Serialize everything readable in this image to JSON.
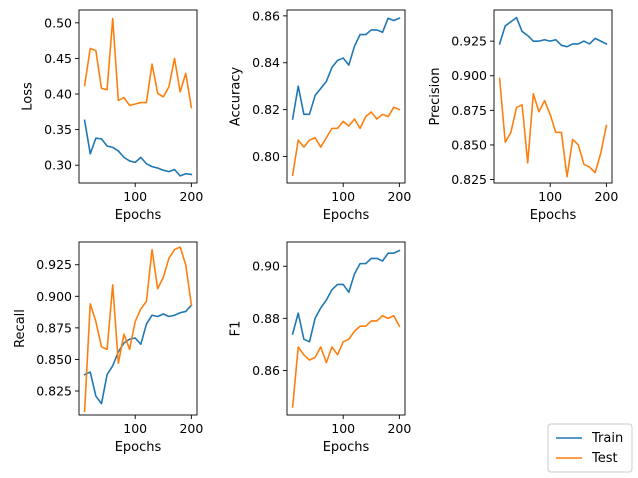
{
  "colors": {
    "train": "#1f77b4",
    "test": "#ff7f0e"
  },
  "legend": {
    "placement": "bottom-right",
    "items": [
      {
        "label": "Train",
        "color": "#1f77b4"
      },
      {
        "label": "Test",
        "color": "#ff7f0e"
      }
    ]
  },
  "chart_data": [
    {
      "type": "line",
      "ylabel": "Loss",
      "xlabel": "Epochs",
      "xlim": [
        0,
        210
      ],
      "ylim": [
        0.275,
        0.518
      ],
      "xticks": [
        100,
        200
      ],
      "yticks": [
        0.3,
        0.35,
        0.4,
        0.45,
        0.5
      ],
      "x": [
        10,
        20,
        30,
        40,
        50,
        60,
        70,
        80,
        90,
        100,
        110,
        120,
        130,
        140,
        150,
        160,
        170,
        180,
        190,
        200
      ],
      "series": [
        {
          "name": "Train",
          "values": [
            0.363,
            0.316,
            0.338,
            0.337,
            0.327,
            0.325,
            0.32,
            0.311,
            0.306,
            0.304,
            0.311,
            0.302,
            0.298,
            0.296,
            0.293,
            0.291,
            0.294,
            0.285,
            0.288,
            0.287
          ]
        },
        {
          "name": "Test",
          "values": [
            0.412,
            0.464,
            0.461,
            0.408,
            0.406,
            0.506,
            0.391,
            0.395,
            0.384,
            0.386,
            0.388,
            0.388,
            0.442,
            0.401,
            0.396,
            0.41,
            0.45,
            0.403,
            0.429,
            0.381
          ]
        }
      ]
    },
    {
      "type": "line",
      "ylabel": "Accuracy",
      "xlabel": "Epochs",
      "xlim": [
        0,
        210
      ],
      "ylim": [
        0.7887,
        0.8625
      ],
      "xticks": [
        100,
        200
      ],
      "yticks": [
        0.8,
        0.82,
        0.84,
        0.86
      ],
      "x": [
        10,
        20,
        30,
        40,
        50,
        60,
        70,
        80,
        90,
        100,
        110,
        120,
        130,
        140,
        150,
        160,
        170,
        180,
        190,
        200
      ],
      "series": [
        {
          "name": "Train",
          "values": [
            0.816,
            0.83,
            0.818,
            0.818,
            0.826,
            0.829,
            0.832,
            0.838,
            0.841,
            0.842,
            0.839,
            0.847,
            0.852,
            0.852,
            0.854,
            0.854,
            0.853,
            0.859,
            0.858,
            0.859
          ]
        },
        {
          "name": "Test",
          "values": [
            0.792,
            0.807,
            0.804,
            0.807,
            0.808,
            0.804,
            0.808,
            0.812,
            0.812,
            0.815,
            0.813,
            0.816,
            0.812,
            0.817,
            0.819,
            0.816,
            0.818,
            0.817,
            0.821,
            0.82
          ]
        }
      ]
    },
    {
      "type": "line",
      "ylabel": "Precision",
      "xlabel": "Epochs",
      "xlim": [
        0,
        210
      ],
      "ylim": [
        0.8225,
        0.9475
      ],
      "xticks": [
        100,
        200
      ],
      "yticks": [
        0.825,
        0.85,
        0.875,
        0.9,
        0.925
      ],
      "x": [
        10,
        20,
        30,
        40,
        50,
        60,
        70,
        80,
        90,
        100,
        110,
        120,
        130,
        140,
        150,
        160,
        170,
        180,
        190,
        200
      ],
      "series": [
        {
          "name": "Train",
          "values": [
            0.923,
            0.936,
            0.939,
            0.942,
            0.932,
            0.929,
            0.925,
            0.925,
            0.926,
            0.925,
            0.926,
            0.922,
            0.921,
            0.923,
            0.923,
            0.925,
            0.923,
            0.927,
            0.925,
            0.923
          ]
        },
        {
          "name": "Test",
          "values": [
            0.898,
            0.852,
            0.859,
            0.877,
            0.879,
            0.837,
            0.887,
            0.874,
            0.882,
            0.872,
            0.859,
            0.859,
            0.827,
            0.854,
            0.85,
            0.836,
            0.834,
            0.83,
            0.844,
            0.864
          ]
        }
      ]
    },
    {
      "type": "line",
      "ylabel": "Recall",
      "xlabel": "Epochs",
      "xlim": [
        0,
        210
      ],
      "ylim": [
        0.806,
        0.943
      ],
      "xticks": [
        100,
        200
      ],
      "yticks": [
        0.825,
        0.85,
        0.875,
        0.9,
        0.925
      ],
      "x": [
        10,
        20,
        30,
        40,
        50,
        60,
        70,
        80,
        90,
        100,
        110,
        120,
        130,
        140,
        150,
        160,
        170,
        180,
        190,
        200
      ],
      "series": [
        {
          "name": "Train",
          "values": [
            0.838,
            0.84,
            0.821,
            0.815,
            0.838,
            0.845,
            0.856,
            0.863,
            0.866,
            0.867,
            0.862,
            0.878,
            0.885,
            0.884,
            0.886,
            0.884,
            0.885,
            0.887,
            0.888,
            0.893
          ]
        },
        {
          "name": "Test",
          "values": [
            0.809,
            0.894,
            0.88,
            0.86,
            0.858,
            0.909,
            0.847,
            0.87,
            0.858,
            0.88,
            0.89,
            0.896,
            0.937,
            0.906,
            0.915,
            0.93,
            0.937,
            0.939,
            0.925,
            0.893
          ]
        }
      ]
    },
    {
      "type": "line",
      "ylabel": "F1",
      "xlabel": "Epochs",
      "xlim": [
        0,
        210
      ],
      "ylim": [
        0.8429,
        0.9093
      ],
      "xticks": [
        100,
        200
      ],
      "yticks": [
        0.86,
        0.88,
        0.9
      ],
      "x": [
        10,
        20,
        30,
        40,
        50,
        60,
        70,
        80,
        90,
        100,
        110,
        120,
        130,
        140,
        150,
        160,
        170,
        180,
        190,
        200
      ],
      "series": [
        {
          "name": "Train",
          "values": [
            0.874,
            0.882,
            0.872,
            0.871,
            0.88,
            0.884,
            0.887,
            0.891,
            0.893,
            0.893,
            0.89,
            0.897,
            0.901,
            0.901,
            0.903,
            0.903,
            0.902,
            0.905,
            0.905,
            0.906
          ]
        },
        {
          "name": "Test",
          "values": [
            0.846,
            0.869,
            0.866,
            0.864,
            0.865,
            0.869,
            0.863,
            0.869,
            0.866,
            0.871,
            0.872,
            0.875,
            0.877,
            0.877,
            0.879,
            0.879,
            0.881,
            0.88,
            0.881,
            0.877
          ]
        }
      ]
    }
  ]
}
